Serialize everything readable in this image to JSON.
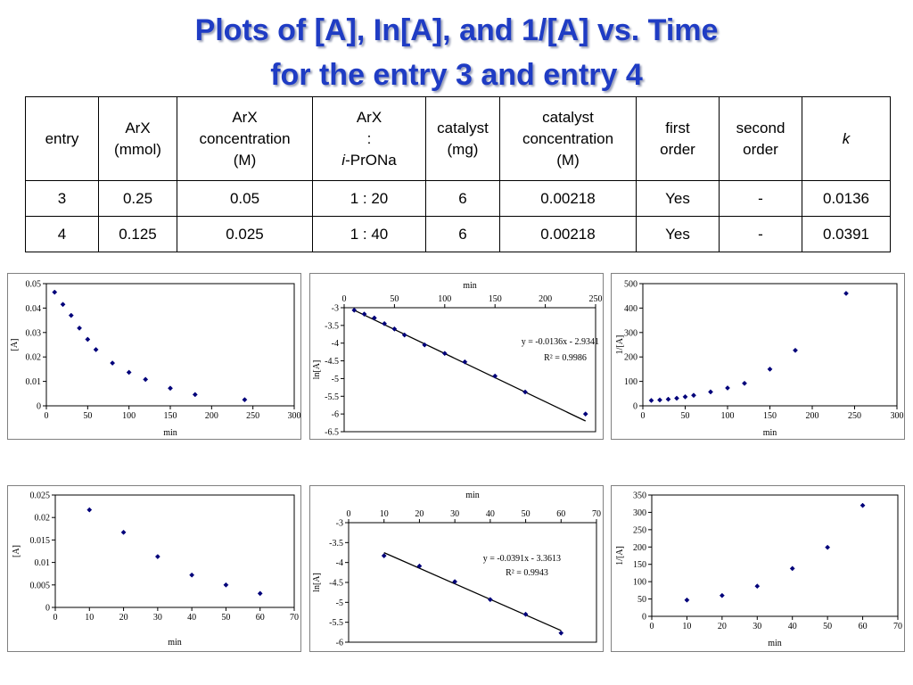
{
  "title": {
    "line1": "Plots of [A], In[A], and 1/[A] vs. Time",
    "line2": "for the entry 3 and entry 4"
  },
  "table": {
    "headers": [
      {
        "lines": [
          "entry"
        ]
      },
      {
        "lines": [
          "ArX",
          "(mmol)"
        ]
      },
      {
        "lines": [
          "ArX",
          "concentration",
          "(M)"
        ]
      },
      {
        "lines": [
          "ArX",
          ":",
          "i-PrONa"
        ]
      },
      {
        "lines": [
          "catalyst",
          "(mg)"
        ]
      },
      {
        "lines": [
          "catalyst",
          "concentration",
          "(M)"
        ]
      },
      {
        "lines": [
          "first",
          "order"
        ]
      },
      {
        "lines": [
          "second",
          "order"
        ]
      },
      {
        "lines": [
          "k"
        ]
      }
    ],
    "rows": [
      [
        "3",
        "0.25",
        "0.05",
        "1 : 20",
        "6",
        "0.00218",
        "Yes",
        "-",
        "0.0136"
      ],
      [
        "4",
        "0.125",
        "0.025",
        "1 : 40",
        "6",
        "0.00218",
        "Yes",
        "-",
        "0.0391"
      ]
    ]
  },
  "colors": {
    "title": "#1f3cc4",
    "marker": "#00007a",
    "frame": "#000000",
    "panel_border": "#808080"
  },
  "chart_data": [
    {
      "type": "scatter",
      "xlabel": "min",
      "ylabel": "[A]",
      "xlim": [
        0,
        300
      ],
      "ylim": [
        0,
        0.05
      ],
      "xticks": [
        "0",
        "50",
        "100",
        "150",
        "200",
        "250",
        "300"
      ],
      "yticks": [
        "0",
        "0.01",
        "0.02",
        "0.03",
        "0.04",
        "0.05"
      ],
      "x_axis_position": "bottom",
      "x": [
        10,
        20,
        30,
        40,
        50,
        60,
        80,
        100,
        120,
        150,
        180,
        240
      ],
      "y": [
        0.0465,
        0.0415,
        0.037,
        0.0318,
        0.0272,
        0.023,
        0.0175,
        0.0137,
        0.0108,
        0.0072,
        0.0046,
        0.0025
      ]
    },
    {
      "type": "scatter",
      "xlabel": "min",
      "ylabel": "ln[A]",
      "xlim": [
        0,
        250
      ],
      "ylim": [
        -6.5,
        -3
      ],
      "xticks": [
        "0",
        "50",
        "100",
        "150",
        "200",
        "250"
      ],
      "yticks": [
        "-3",
        "-3.5",
        "-4",
        "-4.5",
        "-5",
        "-5.5",
        "-6",
        "-6.5"
      ],
      "x_axis_position": "top",
      "x": [
        10,
        20,
        30,
        40,
        50,
        60,
        80,
        100,
        120,
        150,
        180,
        240
      ],
      "y": [
        -3.07,
        -3.18,
        -3.29,
        -3.45,
        -3.6,
        -3.77,
        -4.05,
        -4.29,
        -4.53,
        -4.93,
        -5.38,
        -6.0
      ],
      "trendline": {
        "slope": -0.0136,
        "intercept": -2.9341,
        "x_range": [
          10,
          240
        ]
      },
      "equation": "y = -0.0136x - 2.9341",
      "r2": "R² = 0.9986"
    },
    {
      "type": "scatter",
      "xlabel": "min",
      "ylabel": "1/[A]",
      "xlim": [
        0,
        300
      ],
      "ylim": [
        0,
        500
      ],
      "xticks": [
        "0",
        "50",
        "100",
        "150",
        "200",
        "250",
        "300"
      ],
      "yticks": [
        "0",
        "100",
        "200",
        "300",
        "400",
        "500"
      ],
      "x_axis_position": "bottom",
      "x": [
        10,
        20,
        30,
        40,
        50,
        60,
        80,
        100,
        120,
        150,
        180,
        240
      ],
      "y": [
        22,
        24,
        27,
        31,
        37,
        43,
        57,
        73,
        92,
        150,
        227,
        460
      ]
    },
    {
      "type": "scatter",
      "xlabel": "min",
      "ylabel": "[A]",
      "xlim": [
        0,
        70
      ],
      "ylim": [
        0,
        0.025
      ],
      "xticks": [
        "0",
        "10",
        "20",
        "30",
        "40",
        "50",
        "60",
        "70"
      ],
      "yticks": [
        "0",
        "0.005",
        "0.01",
        "0.015",
        "0.02",
        "0.025"
      ],
      "x_axis_position": "bottom",
      "x": [
        10,
        20,
        30,
        40,
        50,
        60
      ],
      "y": [
        0.0217,
        0.0167,
        0.0113,
        0.0072,
        0.005,
        0.0031
      ]
    },
    {
      "type": "scatter",
      "xlabel": "min",
      "ylabel": "ln[A]",
      "xlim": [
        0,
        70
      ],
      "ylim": [
        -6,
        -3
      ],
      "xticks": [
        "0",
        "10",
        "20",
        "30",
        "40",
        "50",
        "60",
        "70"
      ],
      "yticks": [
        "-3",
        "-3.5",
        "-4",
        "-4.5",
        "-5",
        "-5.5",
        "-6"
      ],
      "x_axis_position": "top",
      "x": [
        10,
        20,
        30,
        40,
        50,
        60
      ],
      "y": [
        -3.83,
        -4.09,
        -4.48,
        -4.93,
        -5.3,
        -5.77
      ],
      "trendline": {
        "slope": -0.0391,
        "intercept": -3.3613,
        "x_range": [
          10,
          60
        ]
      },
      "equation": "y = -0.0391x - 3.3613",
      "r2": "R² = 0.9943"
    },
    {
      "type": "scatter",
      "xlabel": "min",
      "ylabel": "1/[A]",
      "xlim": [
        0,
        70
      ],
      "ylim": [
        0,
        350
      ],
      "xticks": [
        "0",
        "10",
        "20",
        "30",
        "40",
        "50",
        "60",
        "70"
      ],
      "yticks": [
        "0",
        "50",
        "100",
        "150",
        "200",
        "250",
        "300",
        "350"
      ],
      "x_axis_position": "bottom",
      "x": [
        10,
        20,
        30,
        40,
        50,
        60
      ],
      "y": [
        47,
        60,
        87,
        138,
        199,
        320
      ]
    }
  ]
}
